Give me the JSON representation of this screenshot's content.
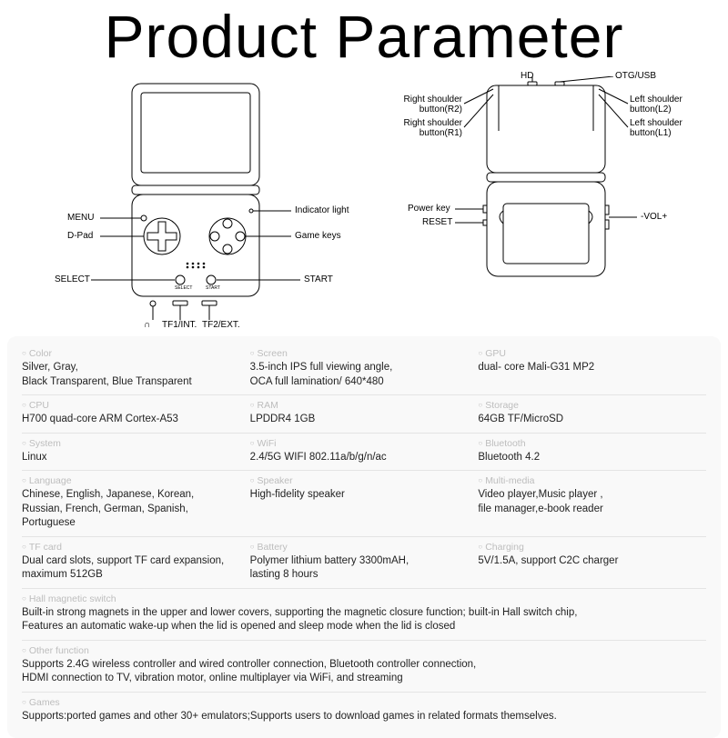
{
  "title": "Product Parameter",
  "front_labels": {
    "menu": "MENU",
    "dpad": "D-Pad",
    "select": "SELECT",
    "headphone": "♫",
    "tf1": "TF1/INT.",
    "tf2": "TF2/EXT.",
    "start": "START",
    "indicator": "Indicator light",
    "gamekeys": "Game keys"
  },
  "back_labels": {
    "hd": "HD",
    "r2": "Right shoulder\nbutton(R2)",
    "r1": "Right shoulder\nbutton(R1)",
    "otg": "OTG/USB",
    "l2": "Left shoulder\nbutton(L2)",
    "l1": "Left shoulder\nbutton(L1)",
    "powerkey": "Power key",
    "reset": "RESET",
    "vol": "-VOL+"
  },
  "specs": [
    [
      {
        "label": "Color",
        "value": "Silver, Gray,\nBlack Transparent, Blue Transparent"
      },
      {
        "label": "Screen",
        "value": "3.5-inch IPS full viewing angle,\nOCA full lamination/ 640*480"
      },
      {
        "label": "GPU",
        "value": "dual- core Mali-G31 MP2"
      }
    ],
    [
      {
        "label": "CPU",
        "value": "H700 quad-core ARM Cortex-A53"
      },
      {
        "label": "RAM",
        "value": "LPDDR4  1GB"
      },
      {
        "label": "Storage",
        "value": "64GB TF/MicroSD"
      }
    ],
    [
      {
        "label": "System",
        "value": "Linux"
      },
      {
        "label": "WiFi",
        "value": "2.4/5G WIFI 802.11a/b/g/n/ac"
      },
      {
        "label": "Bluetooth",
        "value": "Bluetooth 4.2"
      }
    ],
    [
      {
        "label": "Language",
        "value": "Chinese, English, Japanese, Korean,\nRussian, French, German, Spanish, Portuguese"
      },
      {
        "label": "Speaker",
        "value": "High-fidelity speaker"
      },
      {
        "label": "Multi-media",
        "value": "Video  player,Music player ,\nfile manager,e-book reader"
      }
    ],
    [
      {
        "label": "TF card",
        "value": "Dual card slots, support TF card expansion,\nmaximum 512GB"
      },
      {
        "label": "Battery",
        "value": "Polymer lithium battery 3300mAH,\nlasting 8 hours"
      },
      {
        "label": "Charging",
        "value": "5V/1.5A, support C2C charger"
      }
    ],
    [
      {
        "label": "Hall magnetic switch",
        "value": "Built-in strong magnets in the upper and lower covers, supporting the magnetic closure function; built-in Hall switch chip,\nFeatures an automatic wake-up when the lid is opened and sleep mode when the lid is closed",
        "full": true
      }
    ],
    [
      {
        "label": "Other function",
        "value": "Supports 2.4G wireless controller and wired controller connection, Bluetooth controller connection,\nHDMI connection to TV, vibration motor, online multiplayer via WiFi, and streaming",
        "full": true
      }
    ],
    [
      {
        "label": "Games",
        "value": "Supports:ported games and other 30+ emulators;Supports users to download games in related formats themselves.",
        "full": true
      }
    ]
  ]
}
